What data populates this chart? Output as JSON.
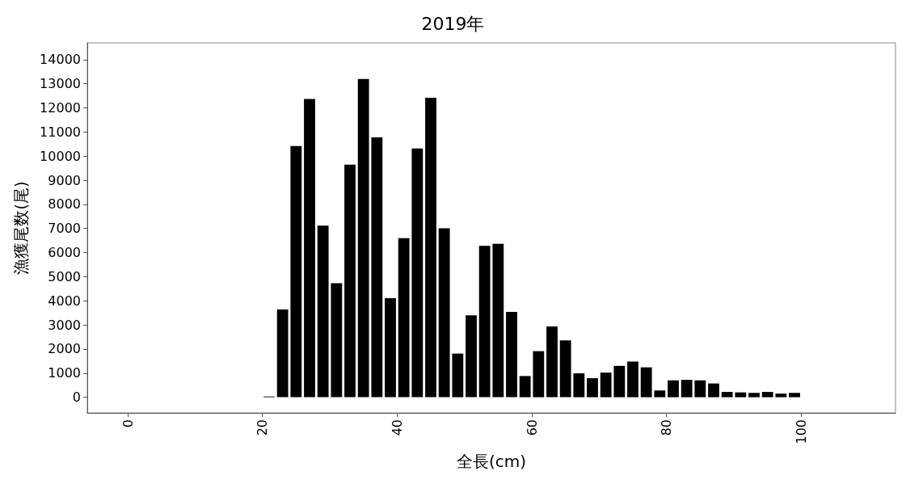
{
  "chart_data": {
    "type": "bar",
    "title": "2019年",
    "xlabel": "全長(cm)",
    "ylabel": "漁獲尾数(尾)",
    "color": "#000000",
    "x": [
      1,
      3,
      5,
      7,
      9,
      11,
      13,
      15,
      17,
      19,
      21,
      23,
      25,
      27,
      29,
      31,
      33,
      35,
      37,
      39,
      41,
      43,
      45,
      47,
      49,
      51,
      53,
      55,
      57,
      59,
      61,
      63,
      65,
      67,
      69,
      71,
      73,
      75,
      77,
      79,
      81,
      83,
      85,
      87,
      89,
      91,
      93,
      95,
      97,
      99,
      101,
      103,
      105,
      107
    ],
    "values": [
      0,
      0,
      0,
      0,
      0,
      0,
      0,
      0,
      0,
      0,
      30,
      3640,
      10420,
      12370,
      7120,
      4730,
      9650,
      13200,
      10780,
      4110,
      6600,
      10320,
      12420,
      7010,
      1810,
      3400,
      6280,
      6360,
      3540,
      880,
      1910,
      2940,
      2360,
      990,
      790,
      1020,
      1300,
      1480,
      1240,
      280,
      700,
      720,
      700,
      570,
      220,
      200,
      180,
      220,
      150,
      180,
      0,
      0,
      0,
      0
    ],
    "xlim": [
      -6,
      114
    ],
    "xticks": [
      0,
      20,
      40,
      60,
      80,
      100
    ],
    "ylim": [
      -650,
      14700
    ],
    "yticks": [
      0,
      1000,
      2000,
      3000,
      4000,
      5000,
      6000,
      7000,
      8000,
      9000,
      10000,
      11000,
      12000,
      13000,
      14000
    ],
    "grid": false
  }
}
